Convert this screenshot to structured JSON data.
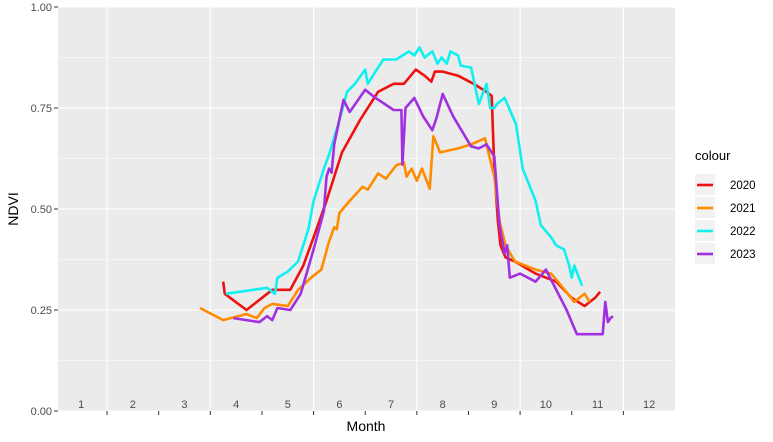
{
  "chart_data": {
    "type": "line",
    "xlabel": "Month",
    "ylabel": "NDVI",
    "ylim": [
      0,
      1
    ],
    "y_ticks": [
      "0.00",
      "0.25",
      "0.50",
      "0.75",
      "1.00"
    ],
    "x_tick_labels": [
      "1",
      "2",
      "3",
      "4",
      "5",
      "6",
      "7",
      "8",
      "9",
      "10",
      "11",
      "12"
    ],
    "grid": true,
    "legend_title": "colour",
    "legend_position": "right",
    "series": [
      {
        "name": "2020",
        "color": "#ee1111",
        "points": [
          [
            3.75,
            0.32
          ],
          [
            3.78,
            0.29
          ],
          [
            4.2,
            0.25
          ],
          [
            4.7,
            0.3
          ],
          [
            5.05,
            0.3
          ],
          [
            5.3,
            0.36
          ],
          [
            5.5,
            0.43
          ],
          [
            5.75,
            0.52
          ],
          [
            6.05,
            0.64
          ],
          [
            6.4,
            0.72
          ],
          [
            6.75,
            0.79
          ],
          [
            7.05,
            0.81
          ],
          [
            7.25,
            0.81
          ],
          [
            7.48,
            0.845
          ],
          [
            7.65,
            0.83
          ],
          [
            7.78,
            0.815
          ],
          [
            7.85,
            0.84
          ],
          [
            8.0,
            0.84
          ],
          [
            8.3,
            0.83
          ],
          [
            8.6,
            0.81
          ],
          [
            8.85,
            0.79
          ],
          [
            8.95,
            0.78
          ],
          [
            9.0,
            0.6
          ],
          [
            9.07,
            0.47
          ],
          [
            9.12,
            0.41
          ],
          [
            9.22,
            0.38
          ],
          [
            9.4,
            0.37
          ],
          [
            9.8,
            0.34
          ],
          [
            10.2,
            0.32
          ],
          [
            10.5,
            0.28
          ],
          [
            10.75,
            0.26
          ],
          [
            10.95,
            0.28
          ],
          [
            11.05,
            0.295
          ]
        ]
      },
      {
        "name": "2021",
        "color": "#ff8c00",
        "points": [
          [
            3.3,
            0.255
          ],
          [
            3.75,
            0.225
          ],
          [
            4.2,
            0.24
          ],
          [
            4.4,
            0.23
          ],
          [
            4.55,
            0.255
          ],
          [
            4.7,
            0.265
          ],
          [
            5.0,
            0.26
          ],
          [
            5.2,
            0.3
          ],
          [
            5.45,
            0.33
          ],
          [
            5.65,
            0.35
          ],
          [
            5.8,
            0.42
          ],
          [
            5.9,
            0.455
          ],
          [
            5.95,
            0.45
          ],
          [
            6.0,
            0.49
          ],
          [
            6.2,
            0.52
          ],
          [
            6.45,
            0.555
          ],
          [
            6.55,
            0.548
          ],
          [
            6.75,
            0.588
          ],
          [
            6.9,
            0.575
          ],
          [
            7.1,
            0.608
          ],
          [
            7.25,
            0.615
          ],
          [
            7.3,
            0.58
          ],
          [
            7.4,
            0.6
          ],
          [
            7.5,
            0.57
          ],
          [
            7.6,
            0.6
          ],
          [
            7.75,
            0.55
          ],
          [
            7.82,
            0.68
          ],
          [
            7.95,
            0.64
          ],
          [
            8.3,
            0.65
          ],
          [
            8.55,
            0.66
          ],
          [
            8.82,
            0.675
          ],
          [
            9.0,
            0.58
          ],
          [
            9.1,
            0.47
          ],
          [
            9.22,
            0.41
          ],
          [
            9.4,
            0.37
          ],
          [
            9.8,
            0.35
          ],
          [
            10.1,
            0.34
          ],
          [
            10.3,
            0.31
          ],
          [
            10.55,
            0.27
          ],
          [
            10.75,
            0.29
          ],
          [
            10.85,
            0.27
          ]
        ]
      },
      {
        "name": "2022",
        "color": "#11f0f0",
        "points": [
          [
            3.8,
            0.29
          ],
          [
            4.6,
            0.305
          ],
          [
            4.75,
            0.29
          ],
          [
            4.8,
            0.33
          ],
          [
            5.0,
            0.345
          ],
          [
            5.2,
            0.37
          ],
          [
            5.4,
            0.45
          ],
          [
            5.5,
            0.52
          ],
          [
            5.7,
            0.6
          ],
          [
            5.8,
            0.635
          ],
          [
            6.0,
            0.72
          ],
          [
            6.15,
            0.79
          ],
          [
            6.3,
            0.81
          ],
          [
            6.5,
            0.845
          ],
          [
            6.55,
            0.81
          ],
          [
            6.7,
            0.84
          ],
          [
            6.85,
            0.87
          ],
          [
            7.1,
            0.87
          ],
          [
            7.35,
            0.89
          ],
          [
            7.45,
            0.88
          ],
          [
            7.55,
            0.9
          ],
          [
            7.65,
            0.875
          ],
          [
            7.8,
            0.89
          ],
          [
            7.9,
            0.86
          ],
          [
            7.98,
            0.875
          ],
          [
            8.08,
            0.86
          ],
          [
            8.15,
            0.89
          ],
          [
            8.3,
            0.88
          ],
          [
            8.35,
            0.855
          ],
          [
            8.55,
            0.85
          ],
          [
            8.7,
            0.76
          ],
          [
            8.85,
            0.81
          ],
          [
            8.92,
            0.75
          ],
          [
            9.0,
            0.75
          ],
          [
            9.05,
            0.76
          ],
          [
            9.2,
            0.775
          ],
          [
            9.42,
            0.71
          ],
          [
            9.55,
            0.6
          ],
          [
            9.8,
            0.52
          ],
          [
            9.9,
            0.46
          ],
          [
            10.1,
            0.43
          ],
          [
            10.2,
            0.41
          ],
          [
            10.35,
            0.4
          ],
          [
            10.45,
            0.36
          ],
          [
            10.5,
            0.33
          ],
          [
            10.55,
            0.36
          ],
          [
            10.7,
            0.31
          ]
        ]
      },
      {
        "name": "2023",
        "color": "#a030e0",
        "points": [
          [
            3.95,
            0.23
          ],
          [
            4.45,
            0.22
          ],
          [
            4.6,
            0.235
          ],
          [
            4.7,
            0.225
          ],
          [
            4.8,
            0.255
          ],
          [
            5.05,
            0.25
          ],
          [
            5.25,
            0.29
          ],
          [
            5.5,
            0.4
          ],
          [
            5.7,
            0.495
          ],
          [
            5.75,
            0.58
          ],
          [
            5.8,
            0.6
          ],
          [
            5.85,
            0.59
          ],
          [
            5.9,
            0.66
          ],
          [
            6.08,
            0.77
          ],
          [
            6.2,
            0.74
          ],
          [
            6.5,
            0.795
          ],
          [
            6.7,
            0.775
          ],
          [
            7.05,
            0.745
          ],
          [
            7.2,
            0.745
          ],
          [
            7.22,
            0.61
          ],
          [
            7.28,
            0.75
          ],
          [
            7.45,
            0.775
          ],
          [
            7.62,
            0.73
          ],
          [
            7.8,
            0.695
          ],
          [
            7.88,
            0.725
          ],
          [
            8.0,
            0.785
          ],
          [
            8.2,
            0.73
          ],
          [
            8.55,
            0.655
          ],
          [
            8.7,
            0.65
          ],
          [
            8.85,
            0.66
          ],
          [
            9.0,
            0.63
          ],
          [
            9.1,
            0.46
          ],
          [
            9.2,
            0.39
          ],
          [
            9.25,
            0.41
          ],
          [
            9.3,
            0.33
          ],
          [
            9.5,
            0.34
          ],
          [
            9.8,
            0.32
          ],
          [
            10.0,
            0.35
          ],
          [
            10.4,
            0.25
          ],
          [
            10.6,
            0.19
          ],
          [
            11.1,
            0.19
          ],
          [
            11.15,
            0.27
          ],
          [
            11.2,
            0.22
          ],
          [
            11.25,
            0.23
          ],
          [
            11.3,
            0.235
          ]
        ]
      }
    ]
  }
}
